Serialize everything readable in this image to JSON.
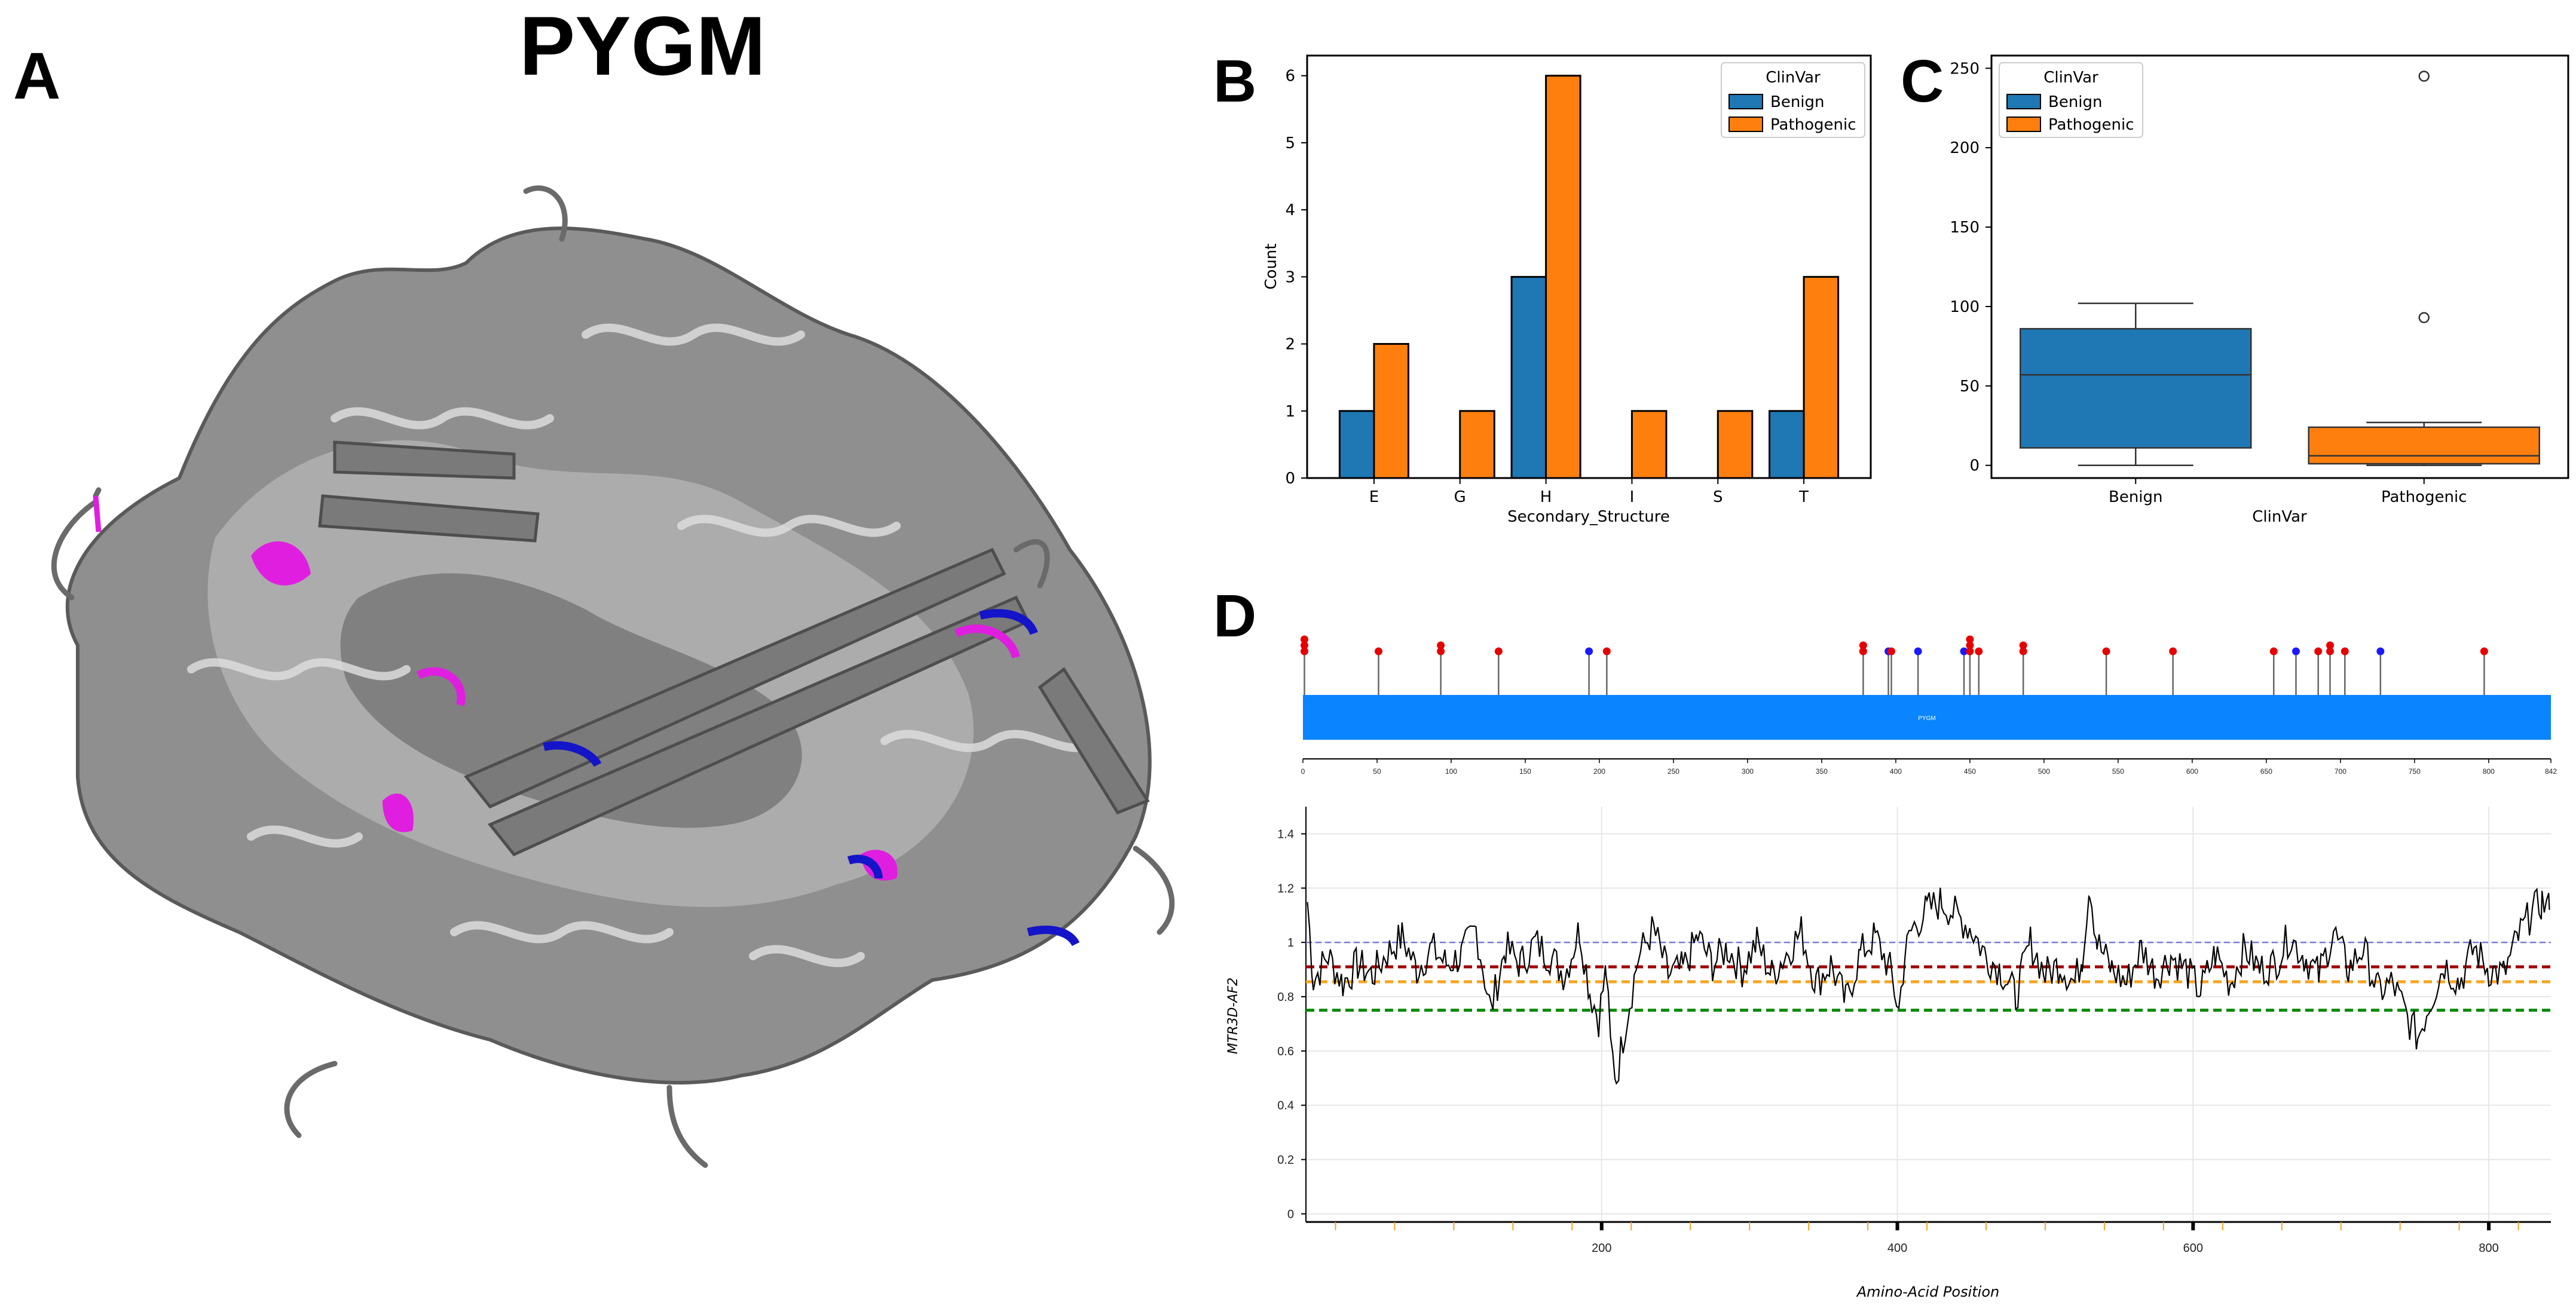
{
  "figure": {
    "protein_title": "PYGM",
    "panel_labels": {
      "a": "A",
      "b": "B",
      "c": "C",
      "d": "D"
    }
  },
  "colors": {
    "benign": "#1f77b4",
    "pathogenic": "#ff7f0e",
    "structure_gray": "#8c8c8c",
    "structure_dark": "#5a5a5a",
    "highlight_magenta": "#e01ee0",
    "highlight_blue": "#1414c8",
    "domain_bar": "#0a84ff",
    "lollipop_red": "#e60000",
    "lollipop_blue": "#1a1aff",
    "ref_blue": "#7b7bd6",
    "ref_red": "#a00000",
    "ref_orange": "#f5a623",
    "ref_green": "#008a00"
  },
  "chart_data": [
    {
      "panel": "B",
      "type": "bar",
      "title": "",
      "xlabel": "Secondary_Structure",
      "ylabel": "Count",
      "categories": [
        "E",
        "G",
        "H",
        "I",
        "S",
        "T"
      ],
      "series": [
        {
          "name": "Benign",
          "values": [
            1,
            0,
            3,
            0,
            0,
            1
          ]
        },
        {
          "name": "Pathogenic",
          "values": [
            2,
            1,
            6,
            1,
            1,
            3
          ]
        }
      ],
      "ylim": [
        0,
        6.3
      ],
      "yticks": [
        0,
        1,
        2,
        3,
        4,
        5,
        6
      ],
      "legend_title": "ClinVar",
      "legend_position": "top-right"
    },
    {
      "panel": "C",
      "type": "box",
      "xlabel": "ClinVar",
      "ylabel": "",
      "categories": [
        "Benign",
        "Pathogenic"
      ],
      "boxes": [
        {
          "name": "Benign",
          "whisker_low": 0,
          "q1": 11,
          "median": 57,
          "q3": 86,
          "whisker_high": 102,
          "outliers": []
        },
        {
          "name": "Pathogenic",
          "whisker_low": 0,
          "q1": 1,
          "median": 6,
          "q3": 24,
          "whisker_high": 27,
          "outliers": [
            93,
            245
          ]
        }
      ],
      "ylim": [
        -8,
        258
      ],
      "yticks": [
        0,
        50,
        100,
        150,
        200,
        250
      ],
      "legend_title": "ClinVar",
      "legend_entries": [
        "Benign",
        "Pathogenic"
      ],
      "legend_position": "top-left"
    },
    {
      "panel": "D-top",
      "type": "lollipop",
      "domain_label": "PYGM",
      "xlim": [
        0,
        842
      ],
      "xticks": [
        0,
        50,
        100,
        150,
        200,
        250,
        300,
        350,
        400,
        450,
        500,
        550,
        600,
        650,
        700,
        750,
        800,
        842
      ],
      "variants": [
        {
          "pos": 1,
          "class": "pathogenic",
          "stack": 3
        },
        {
          "pos": 51,
          "class": "pathogenic",
          "stack": 1
        },
        {
          "pos": 93,
          "class": "pathogenic",
          "stack": 2
        },
        {
          "pos": 132,
          "class": "pathogenic",
          "stack": 1
        },
        {
          "pos": 193,
          "class": "benign",
          "stack": 1
        },
        {
          "pos": 205,
          "class": "pathogenic",
          "stack": 1
        },
        {
          "pos": 378,
          "class": "pathogenic",
          "stack": 2
        },
        {
          "pos": 395,
          "class": "benign",
          "stack": 1
        },
        {
          "pos": 397,
          "class": "pathogenic",
          "stack": 1
        },
        {
          "pos": 415,
          "class": "benign",
          "stack": 1
        },
        {
          "pos": 446,
          "class": "benign",
          "stack": 1
        },
        {
          "pos": 450,
          "class": "pathogenic",
          "stack": 3
        },
        {
          "pos": 456,
          "class": "pathogenic",
          "stack": 1
        },
        {
          "pos": 486,
          "class": "pathogenic",
          "stack": 2
        },
        {
          "pos": 542,
          "class": "pathogenic",
          "stack": 1
        },
        {
          "pos": 587,
          "class": "pathogenic",
          "stack": 1
        },
        {
          "pos": 655,
          "class": "pathogenic",
          "stack": 1
        },
        {
          "pos": 670,
          "class": "benign",
          "stack": 1
        },
        {
          "pos": 685,
          "class": "pathogenic",
          "stack": 1
        },
        {
          "pos": 693,
          "class": "pathogenic",
          "stack": 2
        },
        {
          "pos": 703,
          "class": "pathogenic",
          "stack": 1
        },
        {
          "pos": 727,
          "class": "benign",
          "stack": 1
        },
        {
          "pos": 797,
          "class": "pathogenic",
          "stack": 1
        }
      ]
    },
    {
      "panel": "D-bottom",
      "type": "line",
      "xlabel": "Amino-Acid Position",
      "ylabel": "MTR3D-AF2",
      "xlim": [
        0,
        842
      ],
      "ylim": [
        -0.03,
        1.5
      ],
      "xticks": [
        200,
        400,
        600,
        800
      ],
      "yticks": [
        0,
        0.2,
        0.4,
        0.6,
        0.8,
        1,
        1.2,
        1.4
      ],
      "reference_lines": [
        {
          "y": 1.0,
          "color_key": "ref_blue"
        },
        {
          "y": 0.91,
          "color_key": "ref_red"
        },
        {
          "y": 0.855,
          "color_key": "ref_orange"
        },
        {
          "y": 0.75,
          "color_key": "ref_green"
        }
      ],
      "x": [
        1,
        5,
        15,
        25,
        35,
        45,
        55,
        65,
        75,
        85,
        95,
        105,
        115,
        125,
        135,
        145,
        155,
        165,
        175,
        185,
        192,
        198,
        203,
        206,
        210,
        216,
        225,
        235,
        245,
        255,
        265,
        275,
        285,
        295,
        305,
        315,
        325,
        335,
        345,
        355,
        365,
        375,
        385,
        395,
        401,
        405,
        410,
        420,
        430,
        440,
        450,
        460,
        470,
        480,
        490,
        500,
        510,
        520,
        525,
        530,
        535,
        545,
        555,
        565,
        575,
        585,
        595,
        605,
        615,
        625,
        635,
        645,
        655,
        665,
        675,
        685,
        695,
        705,
        715,
        725,
        735,
        745,
        752,
        760,
        770,
        780,
        790,
        800,
        810,
        820,
        828,
        836,
        841
      ],
      "y": [
        1.15,
        0.86,
        0.95,
        0.85,
        0.92,
        0.88,
        0.96,
        1.02,
        0.9,
        0.98,
        0.92,
        0.95,
        1.05,
        0.75,
        0.98,
        0.92,
        1.0,
        0.95,
        0.88,
        1.05,
        0.82,
        0.72,
        0.9,
        0.62,
        0.5,
        0.7,
        0.95,
        1.05,
        0.88,
        0.9,
        1.02,
        0.92,
        0.98,
        0.9,
        1.0,
        0.88,
        0.96,
        1.04,
        0.85,
        0.92,
        0.78,
        0.96,
        1.02,
        0.9,
        0.75,
        0.95,
        1.05,
        1.12,
        1.15,
        1.1,
        1.05,
        0.95,
        0.9,
        0.8,
        1.0,
        0.88,
        0.92,
        0.85,
        0.95,
        1.22,
        1.0,
        0.9,
        0.85,
        0.98,
        0.88,
        0.95,
        0.9,
        0.82,
        0.96,
        0.85,
        0.98,
        0.9,
        0.92,
        1.02,
        0.95,
        0.88,
        1.04,
        0.9,
        0.98,
        0.82,
        0.85,
        0.72,
        0.65,
        0.78,
        0.92,
        0.85,
        0.98,
        0.9,
        0.88,
        1.02,
        1.1,
        1.15,
        1.12
      ]
    }
  ]
}
